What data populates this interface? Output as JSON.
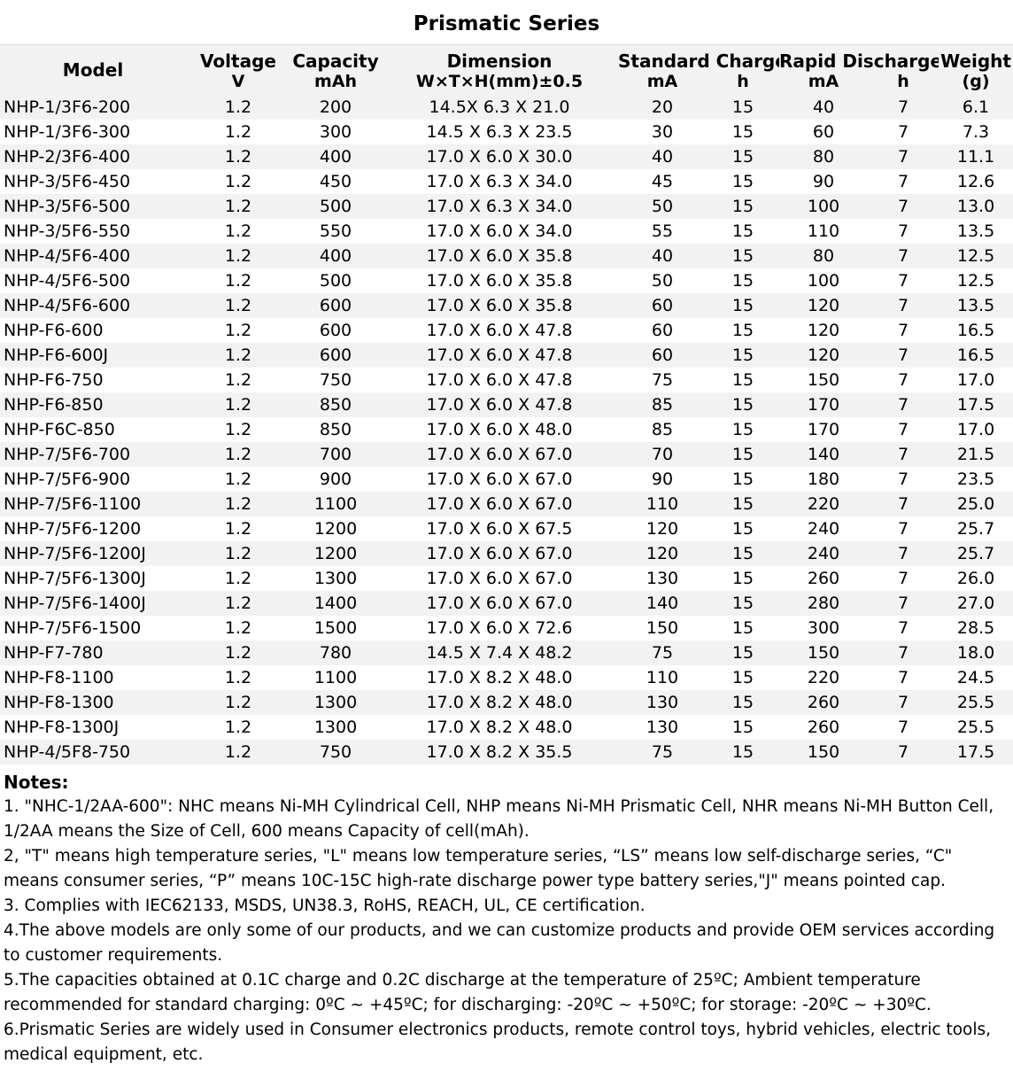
{
  "title": "Prismatic Series",
  "headers": {
    "model": "Model",
    "voltage": "Voltage",
    "voltage_unit": "V",
    "capacity": "Capacity",
    "capacity_unit": "mAh",
    "dimension": "Dimension",
    "dimension_unit": "W×T×H(mm)±0.5",
    "standard_charge": "Standard Charge",
    "sc_ma": "mA",
    "sc_h": "h",
    "rapid_discharge": "Rapid Discharge",
    "rd_ma": "mA",
    "rd_h": "h",
    "weight": "Weight",
    "weight_unit": "(g)"
  },
  "rows": [
    {
      "shade": true,
      "model": "NHP-1/3F6-200",
      "voltage": "1.2",
      "capacity": "200",
      "dimension": "14.5X 6.3 X 21.0",
      "sc_ma": "20",
      "sc_h": "15",
      "rd_ma": "40",
      "rd_h": "7",
      "weight": "6.1"
    },
    {
      "shade": false,
      "model": "NHP-1/3F6-300",
      "voltage": "1.2",
      "capacity": "300",
      "dimension": "14.5 X 6.3 X 23.5",
      "sc_ma": "30",
      "sc_h": "15",
      "rd_ma": "60",
      "rd_h": "7",
      "weight": "7.3"
    },
    {
      "shade": true,
      "model": "NHP-2/3F6-400",
      "voltage": "1.2",
      "capacity": "400",
      "dimension": "17.0 X 6.0 X 30.0",
      "sc_ma": "40",
      "sc_h": "15",
      "rd_ma": "80",
      "rd_h": "7",
      "weight": "11.1"
    },
    {
      "shade": false,
      "model": "NHP-3/5F6-450",
      "voltage": "1.2",
      "capacity": "450",
      "dimension": "17.0 X 6.3 X 34.0",
      "sc_ma": "45",
      "sc_h": "15",
      "rd_ma": "90",
      "rd_h": "7",
      "weight": "12.6"
    },
    {
      "shade": true,
      "model": "NHP-3/5F6-500",
      "voltage": "1.2",
      "capacity": "500",
      "dimension": "17.0 X 6.3 X 34.0",
      "sc_ma": "50",
      "sc_h": "15",
      "rd_ma": "100",
      "rd_h": "7",
      "weight": "13.0"
    },
    {
      "shade": false,
      "model": "NHP-3/5F6-550",
      "voltage": "1.2",
      "capacity": "550",
      "dimension": "17.0 X 6.0 X 34.0",
      "sc_ma": "55",
      "sc_h": "15",
      "rd_ma": "110",
      "rd_h": "7",
      "weight": "13.5"
    },
    {
      "shade": true,
      "model": "NHP-4/5F6-400",
      "voltage": "1.2",
      "capacity": "400",
      "dimension": "17.0 X 6.0 X 35.8",
      "sc_ma": "40",
      "sc_h": "15",
      "rd_ma": "80",
      "rd_h": "7",
      "weight": "12.5"
    },
    {
      "shade": false,
      "model": "NHP-4/5F6-500",
      "voltage": "1.2",
      "capacity": "500",
      "dimension": "17.0 X 6.0 X 35.8",
      "sc_ma": "50",
      "sc_h": "15",
      "rd_ma": "100",
      "rd_h": "7",
      "weight": "12.5"
    },
    {
      "shade": true,
      "model": "NHP-4/5F6-600",
      "voltage": "1.2",
      "capacity": "600",
      "dimension": "17.0 X 6.0 X 35.8",
      "sc_ma": "60",
      "sc_h": "15",
      "rd_ma": "120",
      "rd_h": "7",
      "weight": "13.5"
    },
    {
      "shade": false,
      "model": "NHP-F6-600",
      "voltage": "1.2",
      "capacity": "600",
      "dimension": "17.0 X 6.0 X 47.8",
      "sc_ma": "60",
      "sc_h": "15",
      "rd_ma": "120",
      "rd_h": "7",
      "weight": "16.5"
    },
    {
      "shade": true,
      "model": "NHP-F6-600J",
      "voltage": "1.2",
      "capacity": "600",
      "dimension": "17.0 X 6.0 X 47.8",
      "sc_ma": "60",
      "sc_h": "15",
      "rd_ma": "120",
      "rd_h": "7",
      "weight": "16.5"
    },
    {
      "shade": false,
      "model": "NHP-F6-750",
      "voltage": "1.2",
      "capacity": "750",
      "dimension": "17.0 X 6.0 X 47.8",
      "sc_ma": "75",
      "sc_h": "15",
      "rd_ma": "150",
      "rd_h": "7",
      "weight": "17.0"
    },
    {
      "shade": true,
      "model": "NHP-F6-850",
      "voltage": "1.2",
      "capacity": "850",
      "dimension": "17.0 X 6.0 X 47.8",
      "sc_ma": "85",
      "sc_h": "15",
      "rd_ma": "170",
      "rd_h": "7",
      "weight": "17.5"
    },
    {
      "shade": false,
      "model": "NHP-F6C-850",
      "voltage": "1.2",
      "capacity": "850",
      "dimension": "17.0 X 6.0 X 48.0",
      "sc_ma": "85",
      "sc_h": "15",
      "rd_ma": "170",
      "rd_h": "7",
      "weight": "17.0"
    },
    {
      "shade": true,
      "model": "NHP-7/5F6-700",
      "voltage": "1.2",
      "capacity": "700",
      "dimension": "17.0 X 6.0 X 67.0",
      "sc_ma": "70",
      "sc_h": "15",
      "rd_ma": "140",
      "rd_h": "7",
      "weight": "21.5"
    },
    {
      "shade": false,
      "model": "NHP-7/5F6-900",
      "voltage": "1.2",
      "capacity": "900",
      "dimension": "17.0 X 6.0 X 67.0",
      "sc_ma": "90",
      "sc_h": "15",
      "rd_ma": "180",
      "rd_h": "7",
      "weight": "23.5"
    },
    {
      "shade": true,
      "model": "NHP-7/5F6-1100",
      "voltage": "1.2",
      "capacity": "1100",
      "dimension": "17.0 X 6.0 X 67.0",
      "sc_ma": "110",
      "sc_h": "15",
      "rd_ma": "220",
      "rd_h": "7",
      "weight": "25.0"
    },
    {
      "shade": false,
      "model": "NHP-7/5F6-1200",
      "voltage": "1.2",
      "capacity": "1200",
      "dimension": "17.0 X 6.0 X 67.5",
      "sc_ma": "120",
      "sc_h": "15",
      "rd_ma": "240",
      "rd_h": "7",
      "weight": "25.7"
    },
    {
      "shade": true,
      "model": "NHP-7/5F6-1200J",
      "voltage": "1.2",
      "capacity": "1200",
      "dimension": "17.0 X 6.0 X 67.0",
      "sc_ma": "120",
      "sc_h": "15",
      "rd_ma": "240",
      "rd_h": "7",
      "weight": "25.7"
    },
    {
      "shade": false,
      "model": "NHP-7/5F6-1300J",
      "voltage": "1.2",
      "capacity": "1300",
      "dimension": "17.0 X 6.0 X 67.0",
      "sc_ma": "130",
      "sc_h": "15",
      "rd_ma": "260",
      "rd_h": "7",
      "weight": "26.0"
    },
    {
      "shade": true,
      "model": "NHP-7/5F6-1400J",
      "voltage": "1.2",
      "capacity": "1400",
      "dimension": "17.0 X 6.0 X 67.0",
      "sc_ma": "140",
      "sc_h": "15",
      "rd_ma": "280",
      "rd_h": "7",
      "weight": "27.0"
    },
    {
      "shade": false,
      "model": "NHP-7/5F6-1500",
      "voltage": "1.2",
      "capacity": "1500",
      "dimension": "17.0 X 6.0 X 72.6",
      "sc_ma": "150",
      "sc_h": "15",
      "rd_ma": "300",
      "rd_h": "7",
      "weight": "28.5"
    },
    {
      "shade": true,
      "model": "NHP-F7-780",
      "voltage": "1.2",
      "capacity": "780",
      "dimension": "14.5 X 7.4 X 48.2",
      "sc_ma": "75",
      "sc_h": "15",
      "rd_ma": "150",
      "rd_h": "7",
      "weight": "18.0"
    },
    {
      "shade": false,
      "model": "NHP-F8-1100",
      "voltage": "1.2",
      "capacity": "1100",
      "dimension": "17.0 X 8.2 X 48.0",
      "sc_ma": "110",
      "sc_h": "15",
      "rd_ma": "220",
      "rd_h": "7",
      "weight": "24.5"
    },
    {
      "shade": true,
      "model": "NHP-F8-1300",
      "voltage": "1.2",
      "capacity": "1300",
      "dimension": "17.0 X 8.2 X 48.0",
      "sc_ma": "130",
      "sc_h": "15",
      "rd_ma": "260",
      "rd_h": "7",
      "weight": "25.5"
    },
    {
      "shade": false,
      "model": "NHP-F8-1300J",
      "voltage": "1.2",
      "capacity": "1300",
      "dimension": "17.0 X 8.2 X 48.0",
      "sc_ma": "130",
      "sc_h": "15",
      "rd_ma": "260",
      "rd_h": "7",
      "weight": "25.5"
    },
    {
      "shade": true,
      "model": "NHP-4/5F8-750",
      "voltage": "1.2",
      "capacity": "750",
      "dimension": "17.0 X 8.2 X 35.5",
      "sc_ma": "75",
      "sc_h": "15",
      "rd_ma": "150",
      "rd_h": "7",
      "weight": "17.5"
    }
  ],
  "notes": {
    "title": "Notes:",
    "items": [
      "1. \"NHC-1/2AA-600\": NHC means Ni-MH Cylindrical Cell, NHP means Ni-MH Prismatic Cell, NHR means Ni-MH Button Cell, 1/2AA means the Size of Cell, 600 means Capacity of cell(mAh).",
      "2, \"T\" means high temperature series, \"L\" means low temperature series, “LS” means low self-discharge series, “C\" means consumer series, “P” means 10C-15C high-rate discharge power type battery series,\"J\" means pointed cap.",
      "3. Complies with IEC62133, MSDS, UN38.3, RoHS, REACH, UL, CE certification.",
      "4.The above models are only some of our products, and we can customize products and provide OEM services according to customer requirements.",
      "5.The capacities obtained at 0.1C charge and 0.2C discharge at the temperature of 25ºC; Ambient temperature recommended for standard charging: 0ºC ~ +45ºC; for discharging: -20ºC ~ +50ºC; for storage: -20ºC ~ +30ºC.",
      "6.Prismatic Series are widely used in Consumer electronics products, remote control toys, hybrid vehicles, electric tools, medical equipment, etc."
    ]
  }
}
